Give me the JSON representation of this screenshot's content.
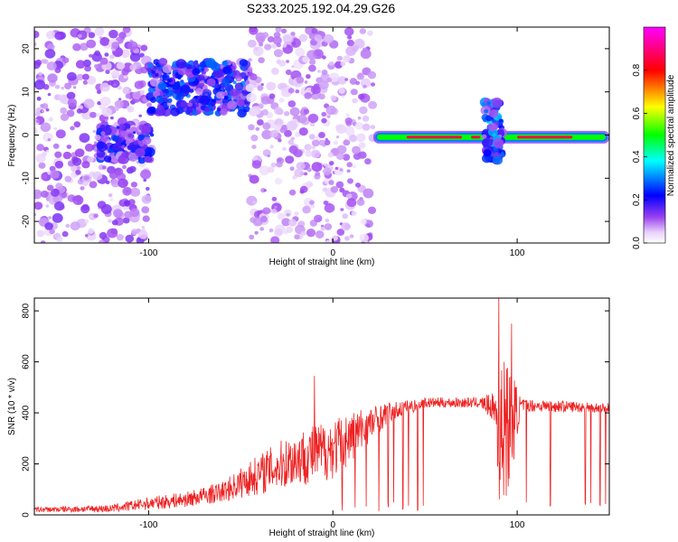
{
  "title": "S233.2025.192.04.29.G26",
  "chart_data": [
    {
      "type": "heatmap",
      "xlabel": "Height of straight line (km)",
      "ylabel": "Frequency (Hz)",
      "xlim": [
        -162,
        150
      ],
      "ylim": [
        -25,
        25
      ],
      "xticks": [
        -100,
        0,
        100
      ],
      "yticks": [
        -20,
        -10,
        0,
        10,
        20
      ],
      "colorbar": {
        "label": "Normalized spectral amplitude",
        "range": [
          0,
          1
        ],
        "ticks": [
          "0.0",
          "0.2",
          "0.4",
          "0.6",
          "0.8"
        ],
        "colors": [
          "#ffffff",
          "#d8b0f8",
          "#8a2be2",
          "#0000ff",
          "#00ffff",
          "#00ff00",
          "#ffff00",
          "#ff8000",
          "#ff0000",
          "#ff00ff"
        ]
      },
      "features": [
        {
          "x_range": [
            -162,
            -100
          ],
          "y_range": [
            -25,
            25
          ],
          "level": 0.12
        },
        {
          "x_range": [
            -100,
            -45
          ],
          "y_range": [
            5,
            17
          ],
          "level": 0.25
        },
        {
          "x_range": [
            -128,
            -98
          ],
          "y_range": [
            -6,
            2
          ],
          "level": 0.22
        },
        {
          "x_range": [
            -45,
            22
          ],
          "y_range": [
            -25,
            25
          ],
          "level": 0.1
        },
        {
          "x_range": [
            22,
            150
          ],
          "y_range": [
            -2,
            1
          ],
          "level": 0.9
        },
        {
          "x_range": [
            82,
            92
          ],
          "y_range": [
            -6,
            8
          ],
          "level": 0.3
        }
      ]
    },
    {
      "type": "line",
      "xlabel": "Height of straight line (km)",
      "ylabel": "SNR (10 * v/v)",
      "xlim": [
        -162,
        150
      ],
      "ylim": [
        0,
        850
      ],
      "xticks": [
        -100,
        0,
        100
      ],
      "yticks": [
        0,
        200,
        400,
        600,
        800
      ],
      "color": "#ee2222",
      "envelope": [
        {
          "x": -162,
          "y": 20,
          "noise": 10
        },
        {
          "x": -120,
          "y": 25,
          "noise": 15
        },
        {
          "x": -100,
          "y": 45,
          "noise": 25
        },
        {
          "x": -80,
          "y": 60,
          "noise": 30
        },
        {
          "x": -60,
          "y": 90,
          "noise": 40
        },
        {
          "x": -40,
          "y": 160,
          "noise": 80
        },
        {
          "x": -20,
          "y": 220,
          "noise": 110
        },
        {
          "x": 0,
          "y": 260,
          "noise": 120
        },
        {
          "x": 15,
          "y": 330,
          "noise": 90
        },
        {
          "x": 30,
          "y": 400,
          "noise": 40
        },
        {
          "x": 50,
          "y": 440,
          "noise": 20
        },
        {
          "x": 80,
          "y": 440,
          "noise": 20
        },
        {
          "x": 88,
          "y": 420,
          "noise": 60
        },
        {
          "x": 90,
          "y": 300,
          "noise": 280
        },
        {
          "x": 96,
          "y": 350,
          "noise": 250
        },
        {
          "x": 102,
          "y": 430,
          "noise": 25
        },
        {
          "x": 150,
          "y": 420,
          "noise": 20
        }
      ],
      "spikes": [
        {
          "x": -10,
          "y": 545
        },
        {
          "x": 90,
          "y": 850
        },
        {
          "x": 97,
          "y": 750
        },
        {
          "x": 93,
          "y": 600
        }
      ],
      "dropouts": [
        5,
        12,
        18,
        25,
        30,
        33,
        38,
        41,
        46,
        49,
        105,
        118,
        137,
        140,
        145,
        148
      ]
    }
  ]
}
